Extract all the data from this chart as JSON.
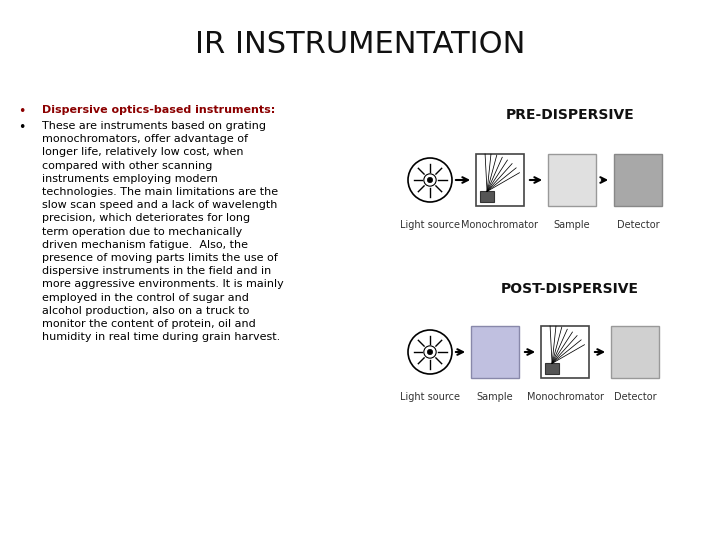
{
  "title": "IR INSTRUMENTATION",
  "title_fontsize": 22,
  "background_color": "#ffffff",
  "bullet1_text": "Dispersive optics-based instruments:",
  "bullet1_color": "#8B0000",
  "bullet2_lines": [
    "These are instruments based on grating",
    "monochromators, offer advantage of",
    "longer life, relatively low cost, when",
    "compared with other scanning",
    "instruments employing modern",
    "technologies. The main limitations are the",
    "slow scan speed and a lack of wavelength",
    "precision, which deteriorates for long",
    "term operation due to mechanically",
    "driven mechanism fatigue.  Also, the",
    "presence of moving parts limits the use of",
    "dispersive instruments in the field and in",
    "more aggressive environments. It is mainly",
    "employed in the control of sugar and",
    "alcohol production, also on a truck to",
    "monitor the content of protein, oil and",
    "humidity in real time during grain harvest."
  ],
  "bullet2_color": "#000000",
  "text_fontsize": 8.0,
  "pre_dispersive_label": "PRE-DISPERSIVE",
  "post_dispersive_label": "POST-DISPERSIVE",
  "pre_labels": [
    "Light source",
    "Monochromator",
    "Sample",
    "Detector"
  ],
  "post_labels": [
    "Light source",
    "Sample",
    "Monochromator",
    "Detector"
  ],
  "diagram_label_fontsize": 7,
  "diagram_title_fontsize": 10,
  "sample_color_pre": "#e0e0e0",
  "detector_color_pre": "#a8a8a8",
  "sample_color_post": "#c0c0e0",
  "detector_color_post": "#d0d0d0",
  "mono_border": "#555555",
  "mono_bg": "#ffffff"
}
